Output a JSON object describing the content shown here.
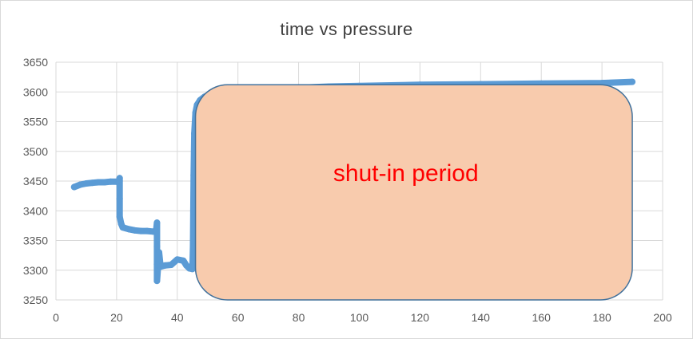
{
  "chart_data": {
    "type": "scatter",
    "title": "time vs pressure",
    "xlabel": "",
    "ylabel": "",
    "xlim": [
      0,
      200
    ],
    "ylim": [
      3250,
      3650
    ],
    "x_ticks": [
      0,
      20,
      40,
      60,
      80,
      100,
      120,
      140,
      160,
      180,
      200
    ],
    "y_ticks": [
      3250,
      3300,
      3350,
      3400,
      3450,
      3500,
      3550,
      3600,
      3650
    ],
    "grid": true,
    "legend": "none",
    "series_color": "#5b9bd5",
    "series": [
      {
        "points": [
          [
            6,
            3440
          ],
          [
            8,
            3444
          ],
          [
            10,
            3446
          ],
          [
            12,
            3447
          ],
          [
            14,
            3448
          ],
          [
            16,
            3448
          ],
          [
            18,
            3449
          ],
          [
            20,
            3449
          ],
          [
            21,
            3450
          ],
          [
            21,
            3455
          ],
          [
            21,
            3420
          ],
          [
            21,
            3390
          ],
          [
            21.5,
            3378
          ],
          [
            22,
            3372
          ],
          [
            24,
            3369
          ],
          [
            26,
            3367
          ],
          [
            28,
            3366
          ],
          [
            30,
            3366
          ],
          [
            32,
            3365
          ],
          [
            33,
            3365
          ],
          [
            33.3,
            3380
          ],
          [
            33.3,
            3340
          ],
          [
            33.3,
            3310
          ],
          [
            33.3,
            3282
          ],
          [
            34,
            3330
          ],
          [
            34.5,
            3306
          ],
          [
            36,
            3308
          ],
          [
            38,
            3309
          ],
          [
            40,
            3318
          ],
          [
            42,
            3316
          ],
          [
            43,
            3308
          ],
          [
            44,
            3303
          ],
          [
            45,
            3302
          ],
          [
            45.2,
            3340
          ],
          [
            45.3,
            3400
          ],
          [
            45.4,
            3460
          ],
          [
            45.6,
            3530
          ],
          [
            46,
            3565
          ],
          [
            46.5,
            3578
          ],
          [
            47.5,
            3586
          ],
          [
            49,
            3592
          ],
          [
            51,
            3596
          ],
          [
            53,
            3599
          ],
          [
            56,
            3601
          ],
          [
            60,
            3603
          ],
          [
            70,
            3606
          ],
          [
            80,
            3607
          ],
          [
            90,
            3609
          ],
          [
            100,
            3610
          ],
          [
            120,
            3612
          ],
          [
            140,
            3613
          ],
          [
            160,
            3614
          ],
          [
            180,
            3615
          ],
          [
            190,
            3617
          ]
        ]
      }
    ],
    "annotation": {
      "text": "shut-in period",
      "x_range": [
        46,
        190
      ],
      "y_range": [
        3250,
        3612
      ],
      "fill": "#f8cbad",
      "stroke": "#41719c",
      "text_color": "#ff0000"
    }
  }
}
